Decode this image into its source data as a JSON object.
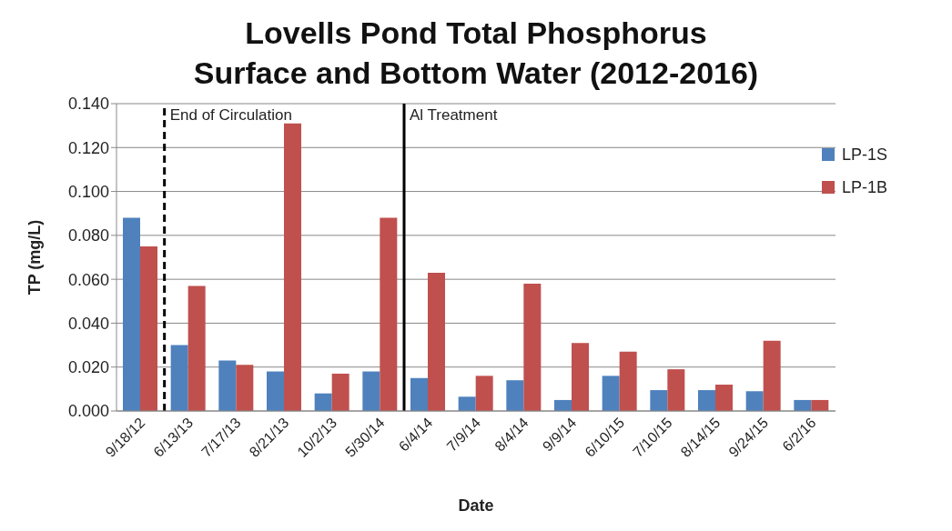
{
  "chart_data": {
    "type": "bar",
    "title": "Lovells Pond Total Phosphorus\nSurface and Bottom Water (2012-2016)",
    "xlabel": "Date",
    "ylabel": "TP (mg/L)",
    "categories": [
      "9/18/12",
      "6/13/13",
      "7/17/13",
      "8/21/13",
      "10/2/13",
      "5/30/14",
      "6/4/14",
      "7/9/14",
      "8/4/14",
      "9/9/14",
      "6/10/15",
      "7/10/15",
      "8/14/15",
      "9/24/15",
      "6/2/16"
    ],
    "series": [
      {
        "name": "LP-1S",
        "color": "#4f81bd",
        "values": [
          0.088,
          0.03,
          0.023,
          0.018,
          0.008,
          0.018,
          0.015,
          0.0065,
          0.014,
          0.005,
          0.016,
          0.0095,
          0.0095,
          0.009,
          0.005
        ]
      },
      {
        "name": "LP-1B",
        "color": "#c0504d",
        "values": [
          0.075,
          0.057,
          0.021,
          0.131,
          0.017,
          0.088,
          0.063,
          0.016,
          0.058,
          0.031,
          0.027,
          0.019,
          0.012,
          0.032,
          0.005
        ]
      }
    ],
    "ylim": [
      0,
      0.14
    ],
    "yticks": [
      {
        "value": 0,
        "label": "0.000"
      },
      {
        "value": 0.02,
        "label": "0.020"
      },
      {
        "value": 0.04,
        "label": "0.040"
      },
      {
        "value": 0.06,
        "label": "0.060"
      },
      {
        "value": 0.08,
        "label": "0.080"
      },
      {
        "value": 0.1,
        "label": "0.100"
      },
      {
        "value": 0.12,
        "label": "0.120"
      },
      {
        "value": 0.14,
        "label": "0.140"
      }
    ],
    "grid": "y",
    "legend": "top right",
    "ref_lines": [
      {
        "axis": "x",
        "value": "6/13/13",
        "label": "End of Circulation",
        "color": "#000000",
        "line_style": "dashed"
      },
      {
        "axis": "x",
        "value": "6/4/14",
        "label": "Al Treatment",
        "color": "#000000",
        "line_style": "solid"
      }
    ]
  }
}
